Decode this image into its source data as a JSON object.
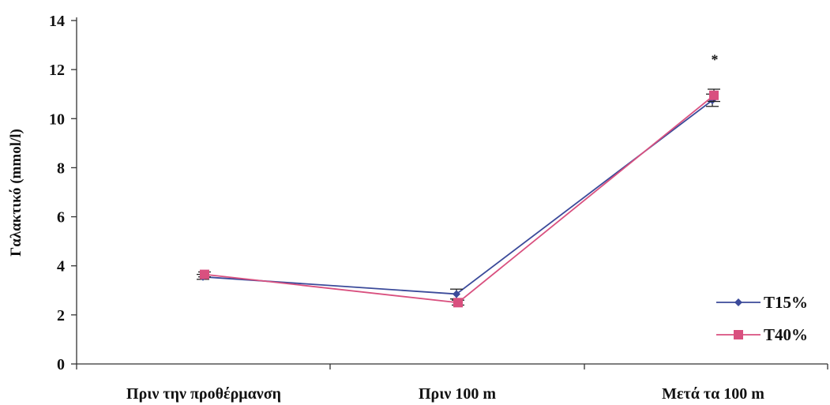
{
  "chart_data": {
    "type": "line",
    "title": "",
    "xlabel": "",
    "ylabel": "Γαλακτικό (mmol/l)",
    "ylim": [
      0,
      14
    ],
    "yticks": [
      0,
      2,
      4,
      6,
      8,
      10,
      12,
      14
    ],
    "grid": false,
    "legend": "bottom-right",
    "categories": [
      "Πριν την προθέρμανση",
      "Πριν 100 m",
      "Μετά τα 100 m"
    ],
    "series": [
      {
        "name": "T15%",
        "color": "#3b4a9a",
        "marker": "diamond",
        "values": [
          3.55,
          2.85,
          10.75
        ],
        "errors": [
          0.1,
          0.2,
          0.25
        ]
      },
      {
        "name": "T40%",
        "color": "#d9507f",
        "marker": "square",
        "values": [
          3.65,
          2.5,
          10.95
        ],
        "errors": [
          0.1,
          0.1,
          0.25
        ]
      }
    ],
    "annotations": [
      {
        "text": "*",
        "category_index": 2,
        "y": 12.4
      }
    ]
  }
}
